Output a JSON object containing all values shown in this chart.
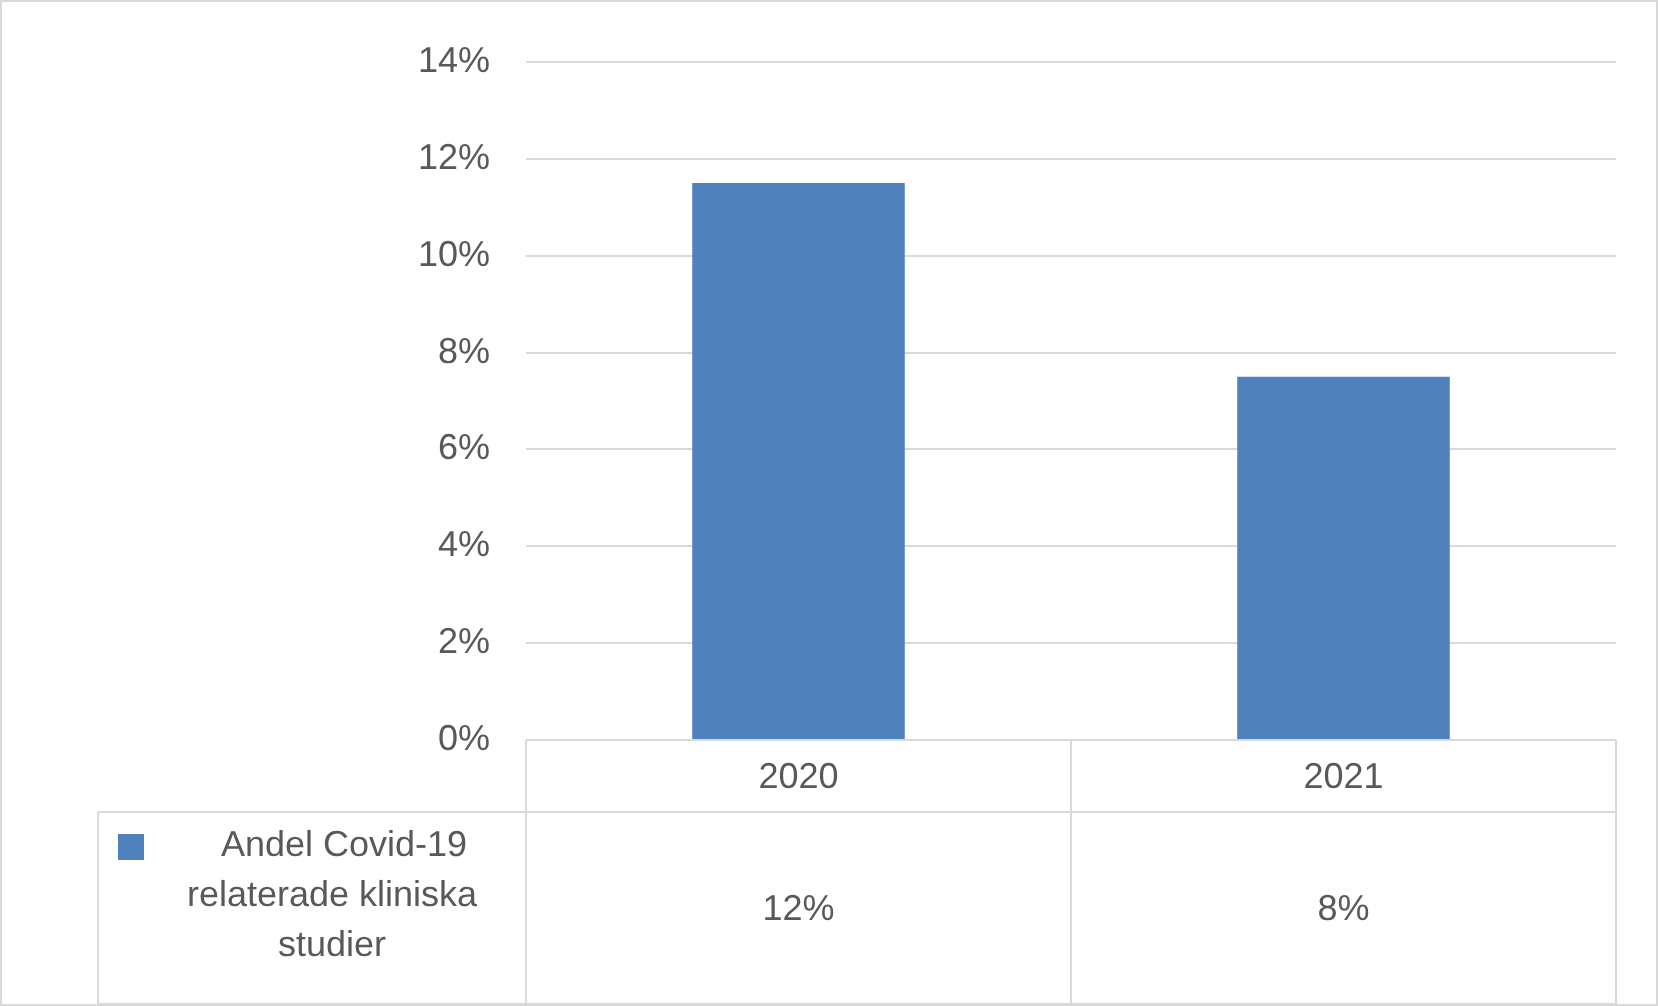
{
  "chart_data": {
    "type": "bar",
    "categories": [
      "2020",
      "2021"
    ],
    "series": [
      {
        "name": "Andel Covid-19 relaterade kliniska studier",
        "color": "#4f81bd",
        "values": [
          11.5,
          7.5
        ],
        "value_labels": [
          "12%",
          "8%"
        ]
      }
    ],
    "ylim": [
      0,
      14
    ],
    "yticks": [
      {
        "value": 0,
        "label": "0%"
      },
      {
        "value": 2,
        "label": "2%"
      },
      {
        "value": 4,
        "label": "4%"
      },
      {
        "value": 6,
        "label": "6%"
      },
      {
        "value": 8,
        "label": "8%"
      },
      {
        "value": 10,
        "label": "10%"
      },
      {
        "value": 12,
        "label": "12%"
      },
      {
        "value": 14,
        "label": "14%"
      }
    ],
    "grid": "y",
    "legend": "bottom left"
  }
}
